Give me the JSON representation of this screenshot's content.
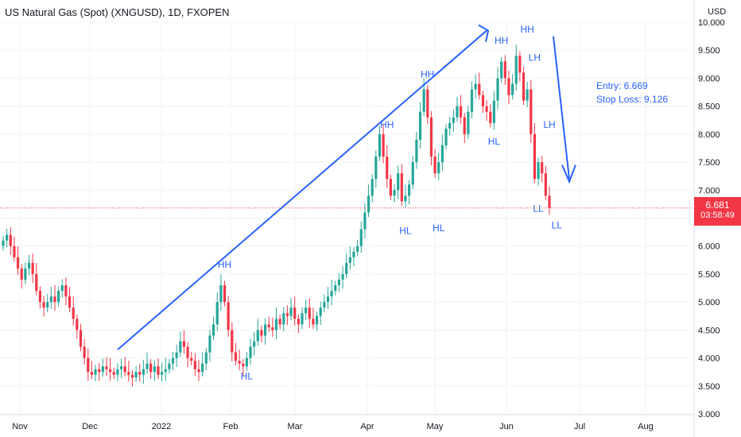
{
  "header": {
    "title": "US Natural Gas (Spot) (XNGUSD), 1D, FXOPEN",
    "currency": "USD"
  },
  "price_label": {
    "price": "6.681",
    "countdown": "03:58:49"
  },
  "notes": {
    "entry": "Entry: 6.669",
    "stop_loss": "Stop Loss: 9.126"
  },
  "colors": {
    "up": "#26a69a",
    "down": "#f23645",
    "annotation": "#2962ff",
    "grid": "#f0f3fa"
  },
  "chart_data": {
    "type": "candlestick",
    "y_ticks": [
      "3.000",
      "3.500",
      "4.000",
      "4.500",
      "5.000",
      "5.500",
      "6.000",
      "6.500",
      "7.000",
      "7.500",
      "8.000",
      "8.500",
      "9.000",
      "9.500",
      "10.000"
    ],
    "y_range": [
      3.0,
      10.0
    ],
    "x_ticks": [
      "Nov",
      "Dec",
      "2022",
      "Feb",
      "Mar",
      "Apr",
      "May",
      "Jun",
      "Jul",
      "Aug"
    ],
    "last_price": 6.681,
    "series_close_approx": [
      6.1,
      6.2,
      6.0,
      5.8,
      5.6,
      5.4,
      5.6,
      5.7,
      5.5,
      5.2,
      5.0,
      4.9,
      5.0,
      5.1,
      5.0,
      5.2,
      5.3,
      5.1,
      4.9,
      4.7,
      4.5,
      4.2,
      4.0,
      3.75,
      3.7,
      3.8,
      3.75,
      3.85,
      3.8,
      3.75,
      3.7,
      3.8,
      3.85,
      3.75,
      3.7,
      3.65,
      3.75,
      3.7,
      3.8,
      3.9,
      3.75,
      3.85,
      3.7,
      3.75,
      3.8,
      3.9,
      4.0,
      4.1,
      4.3,
      4.2,
      4.0,
      3.95,
      3.8,
      3.75,
      3.9,
      4.1,
      4.4,
      4.6,
      5.0,
      5.3,
      5.0,
      4.5,
      4.1,
      3.95,
      3.9,
      3.85,
      4.0,
      4.2,
      4.3,
      4.5,
      4.4,
      4.6,
      4.55,
      4.5,
      4.7,
      4.6,
      4.8,
      4.75,
      4.9,
      4.7,
      4.6,
      4.8,
      4.9,
      4.7,
      4.6,
      4.75,
      4.9,
      5.0,
      5.1,
      5.2,
      5.3,
      5.4,
      5.5,
      5.7,
      5.8,
      5.9,
      6.0,
      6.3,
      6.6,
      6.9,
      7.2,
      7.6,
      8.0,
      7.6,
      7.2,
      6.9,
      7.0,
      7.3,
      6.8,
      6.9,
      7.1,
      7.5,
      7.9,
      8.4,
      8.8,
      8.3,
      7.6,
      7.3,
      7.5,
      7.8,
      8.1,
      8.2,
      8.3,
      8.5,
      8.3,
      8.0,
      8.4,
      8.8,
      8.9,
      8.7,
      8.5,
      8.4,
      8.2,
      8.6,
      9.0,
      9.3,
      9.0,
      8.7,
      8.9,
      9.4,
      9.1,
      8.6,
      8.8,
      8.0,
      7.2,
      7.5,
      7.3,
      6.9,
      6.681
    ],
    "annotations": [
      {
        "text": "HH",
        "date_index": 60,
        "price": 5.5,
        "pos": "above"
      },
      {
        "text": "HL",
        "date_index": 66,
        "price": 3.9,
        "pos": "below"
      },
      {
        "text": "HH",
        "date_index": 104,
        "price": 8.0,
        "pos": "above"
      },
      {
        "text": "HL",
        "date_index": 109,
        "price": 6.5,
        "pos": "below"
      },
      {
        "text": "HH",
        "date_index": 115,
        "price": 8.9,
        "pos": "above"
      },
      {
        "text": "HL",
        "date_index": 118,
        "price": 6.55,
        "pos": "below"
      },
      {
        "text": "HH",
        "date_index": 135,
        "price": 9.5,
        "pos": "above"
      },
      {
        "text": "HL",
        "date_index": 133,
        "price": 8.1,
        "pos": "below"
      },
      {
        "text": "HH",
        "date_index": 142,
        "price": 9.7,
        "pos": "above"
      },
      {
        "text": "LH",
        "date_index": 144,
        "price": 9.2,
        "pos": "above"
      },
      {
        "text": "LH",
        "date_index": 148,
        "price": 8.0,
        "pos": "above"
      },
      {
        "text": "LL",
        "date_index": 145,
        "price": 6.9,
        "pos": "below"
      },
      {
        "text": "LL",
        "date_index": 150,
        "price": 6.6,
        "pos": "below"
      }
    ]
  }
}
